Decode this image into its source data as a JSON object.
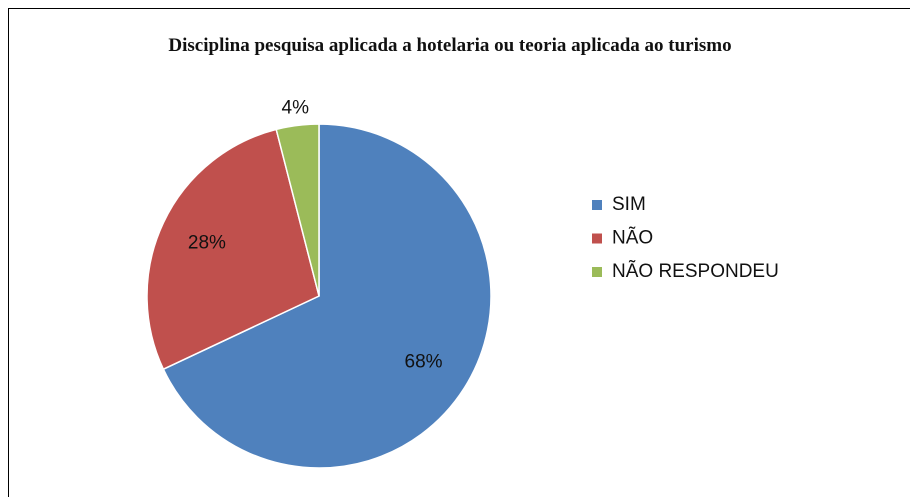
{
  "chart_data": {
    "type": "pie",
    "title": "Disciplina pesquisa aplicada a hotelaria ou teoria aplicada ao turismo",
    "categories": [
      "SIM",
      "NÃO",
      "NÃO RESPONDEU"
    ],
    "values": [
      68,
      28,
      4
    ],
    "value_labels": [
      "68%",
      "28%",
      "4%"
    ],
    "colors": [
      "#4f81bd",
      "#c0504d",
      "#9bbb59"
    ],
    "legend": "right"
  }
}
